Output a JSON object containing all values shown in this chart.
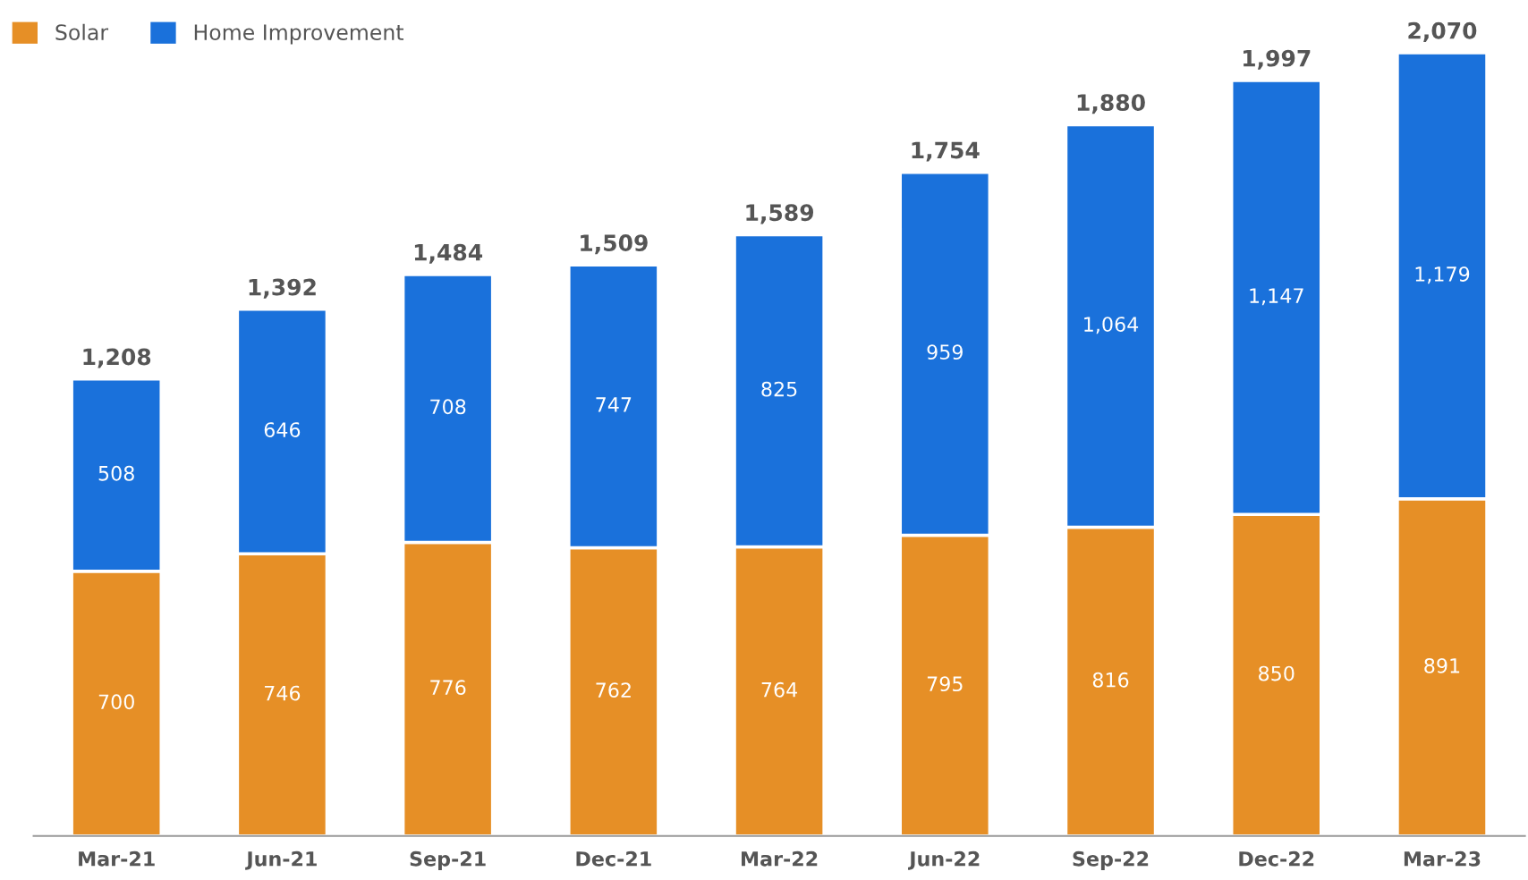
{
  "chart_data": {
    "type": "bar",
    "stacked": true,
    "legend": "top left",
    "grid": false,
    "categories": [
      "Mar-21",
      "Jun-21",
      "Sep-21",
      "Dec-21",
      "Mar-22",
      "Jun-22",
      "Sep-22",
      "Dec-22",
      "Mar-23"
    ],
    "series": [
      {
        "name": "Solar",
        "color": "#e68f26",
        "values": [
          700,
          746,
          776,
          762,
          764,
          795,
          816,
          850,
          891
        ],
        "value_labels": [
          "700",
          "746",
          "776",
          "762",
          "764",
          "795",
          "816",
          "850",
          "891"
        ]
      },
      {
        "name": "Home Improvement",
        "color": "#1a71db",
        "values": [
          508,
          646,
          708,
          747,
          825,
          959,
          1064,
          1147,
          1179
        ],
        "value_labels": [
          "508",
          "646",
          "708",
          "747",
          "825",
          "959",
          "1,064",
          "1,147",
          "1,179"
        ]
      }
    ],
    "totals": [
      "1,208",
      "1,392",
      "1,484",
      "1,509",
      "1,589",
      "1,754",
      "1,880",
      "1,997",
      "2,070"
    ]
  }
}
